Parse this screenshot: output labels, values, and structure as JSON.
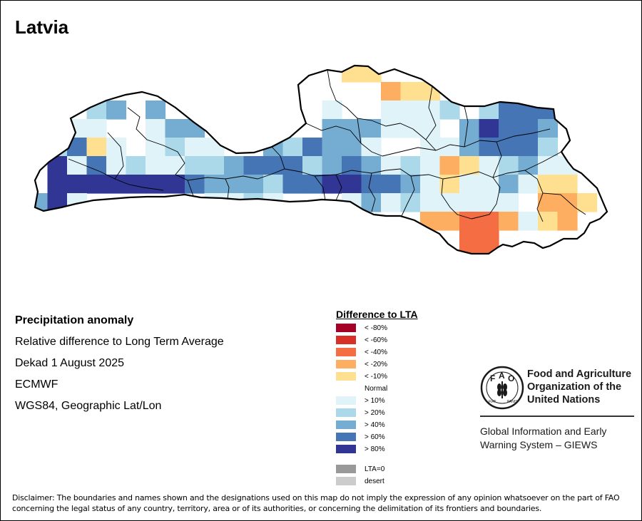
{
  "map_title": "Latvia",
  "info": {
    "heading": "Precipitation anomaly",
    "subtitle": "Relative difference to Long Term Average",
    "period": "Dekad 1 August 2025",
    "source": "ECMWF",
    "projection": "WGS84, Geographic Lat/Lon"
  },
  "legend": {
    "title": "Difference to LTA",
    "classes": [
      {
        "label": "< -80%",
        "color": "#a50026"
      },
      {
        "label": "< -60%",
        "color": "#d73027"
      },
      {
        "label": "< -40%",
        "color": "#f46d43"
      },
      {
        "label": "< -20%",
        "color": "#fdae61"
      },
      {
        "label": "< -10%",
        "color": "#fee090"
      },
      {
        "label": "Normal",
        "color": "#ffffff"
      },
      {
        "label": "> 10%",
        "color": "#e0f3f8"
      },
      {
        "label": "> 20%",
        "color": "#abd9e9"
      },
      {
        "label": "> 40%",
        "color": "#74add1"
      },
      {
        "label": "> 60%",
        "color": "#4575b4"
      },
      {
        "label": "> 80%",
        "color": "#313695"
      }
    ],
    "extra": [
      {
        "label": "LTA=0",
        "color": "#999999"
      },
      {
        "label": "desert",
        "color": "#cccccc"
      }
    ]
  },
  "fao": {
    "organization": "Food and Agriculture Organization of the United Nations",
    "system": "Global Information and Early Warning System – GIEWS",
    "logo_text": "FAO FIAT PANIS"
  },
  "disclaimer": "Disclaimer: The boundaries and names shown and the designations used on this map do not imply the expression of any opinion whatsoever on the part of FAO concerning the legal status of any country, territory, area or of its authorities, or concerning the delimitation of its frontiers and boundaries."
}
